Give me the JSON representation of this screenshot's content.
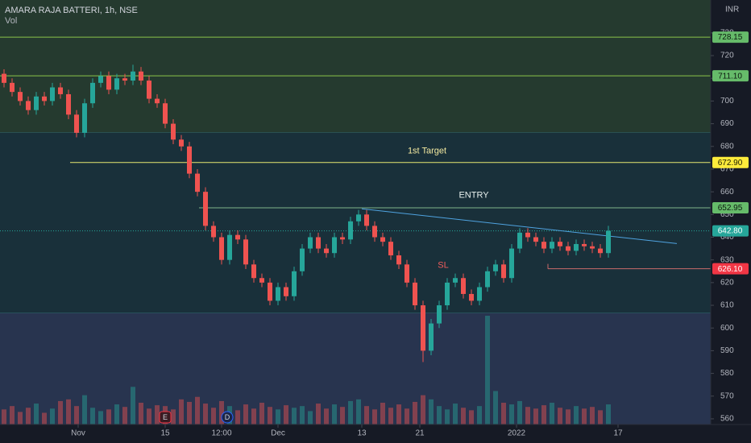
{
  "chart_data": {
    "type": "candlestick",
    "title": "AMARA RAJA BATTERI, 1h, NSE",
    "volume_label": "Vol",
    "currency": "INR",
    "up_color": "#26a69a",
    "down_color": "#ef5350",
    "x": [
      0,
      1,
      2,
      3,
      4,
      5,
      6,
      7,
      8,
      9,
      10,
      11,
      12,
      13,
      14,
      15,
      16,
      17,
      18,
      19,
      20,
      21,
      22,
      23,
      24,
      25,
      26,
      27,
      28,
      29,
      30,
      31,
      32,
      33,
      34,
      35,
      36,
      37,
      38,
      39,
      40,
      41,
      42,
      43,
      44,
      45,
      46,
      47,
      48,
      49,
      50,
      51,
      52,
      53,
      54,
      55,
      56,
      57,
      58,
      59,
      60,
      61,
      62,
      63,
      64,
      65,
      66,
      67,
      68,
      69,
      70,
      71,
      72,
      73,
      74,
      75
    ],
    "open": [
      712,
      708,
      704,
      700,
      696,
      702,
      700,
      706,
      703,
      694,
      686,
      699,
      708,
      711,
      705,
      710,
      709,
      713,
      709,
      701,
      699,
      690,
      683,
      680,
      668,
      660,
      645,
      640,
      630,
      641,
      639,
      628,
      622,
      620,
      612,
      618,
      614,
      625,
      635,
      640,
      635,
      633,
      640,
      639,
      647,
      650,
      645,
      640,
      638,
      632,
      628,
      620,
      610,
      590,
      602,
      610,
      620,
      622,
      615,
      612,
      618,
      625,
      628,
      622,
      635,
      642,
      640,
      638,
      635,
      638,
      636,
      634,
      637,
      636,
      635,
      633
    ],
    "high": [
      714,
      710,
      706,
      702,
      704,
      704,
      708,
      708,
      705,
      696,
      701,
      710,
      713,
      713,
      712,
      712,
      716,
      715,
      711,
      703,
      701,
      692,
      685,
      682,
      670,
      662,
      647,
      642,
      643,
      643,
      641,
      630,
      624,
      622,
      620,
      620,
      627,
      637,
      642,
      642,
      637,
      642,
      642,
      649,
      652,
      652,
      647,
      642,
      640,
      634,
      630,
      622,
      612,
      604,
      612,
      622,
      624,
      624,
      617,
      620,
      627,
      630,
      630,
      637,
      644,
      644,
      642,
      640,
      640,
      640,
      638,
      639,
      639,
      638,
      637,
      645
    ],
    "low": [
      706,
      702,
      698,
      694,
      694,
      698,
      698,
      701,
      692,
      684,
      684,
      697,
      706,
      703,
      703,
      707,
      707,
      707,
      699,
      697,
      688,
      681,
      678,
      666,
      658,
      643,
      638,
      628,
      628,
      637,
      626,
      620,
      618,
      610,
      610,
      612,
      612,
      623,
      633,
      633,
      631,
      631,
      637,
      637,
      645,
      643,
      638,
      636,
      630,
      626,
      618,
      608,
      585,
      588,
      600,
      608,
      618,
      613,
      610,
      610,
      616,
      623,
      620,
      620,
      633,
      638,
      636,
      633,
      633,
      634,
      632,
      632,
      634,
      633,
      631,
      631
    ],
    "close": [
      708,
      704,
      700,
      696,
      702,
      700,
      706,
      703,
      694,
      686,
      699,
      708,
      711,
      705,
      710,
      709,
      713,
      709,
      701,
      699,
      690,
      683,
      680,
      668,
      660,
      645,
      640,
      630,
      641,
      639,
      628,
      622,
      620,
      612,
      618,
      614,
      625,
      635,
      640,
      635,
      633,
      640,
      639,
      647,
      650,
      645,
      640,
      638,
      632,
      628,
      620,
      610,
      590,
      602,
      610,
      620,
      622,
      615,
      612,
      618,
      625,
      628,
      622,
      635,
      642,
      640,
      638,
      635,
      638,
      636,
      634,
      637,
      636,
      635,
      633,
      642.8
    ],
    "volume": [
      18,
      22,
      15,
      20,
      25,
      14,
      19,
      28,
      30,
      22,
      35,
      20,
      16,
      18,
      24,
      21,
      45,
      26,
      19,
      23,
      22,
      18,
      30,
      27,
      33,
      25,
      20,
      28,
      22,
      17,
      24,
      19,
      26,
      21,
      18,
      23,
      20,
      22,
      16,
      25,
      19,
      24,
      21,
      28,
      30,
      22,
      18,
      26,
      20,
      24,
      19,
      27,
      35,
      30,
      22,
      18,
      25,
      20,
      17,
      22,
      130,
      40,
      26,
      24,
      28,
      21,
      19,
      23,
      26,
      20,
      18,
      22,
      19,
      21,
      17,
      24
    ],
    "xlim": [
      -0.5,
      87.7
    ],
    "ylim": [
      557.5,
      744.5
    ],
    "yticks": [
      560,
      570,
      580,
      590,
      600,
      610,
      620,
      630,
      640,
      650,
      660,
      670,
      680,
      690,
      700,
      710,
      720,
      730
    ],
    "xticks": [
      {
        "value": 9.2,
        "label": "Nov"
      },
      {
        "value": 20,
        "label": "15"
      },
      {
        "value": 27,
        "label": "12:00"
      },
      {
        "value": 34,
        "label": "Dec"
      },
      {
        "value": 44.4,
        "label": "13"
      },
      {
        "value": 51.6,
        "label": "21"
      },
      {
        "value": 63.6,
        "label": "2022"
      },
      {
        "value": 76.2,
        "label": "17"
      }
    ],
    "zones": [
      {
        "from": 686,
        "to": 744.5,
        "color": "#253a2f"
      },
      {
        "from": 606.5,
        "to": 686,
        "color": "#19303a"
      },
      {
        "from": 557.5,
        "to": 606.5,
        "color": "#28344f"
      }
    ],
    "levels": [
      {
        "value": 728.15,
        "label": "728.15",
        "from_x": -0.5,
        "color": "#8bc34a",
        "label_bg": "#66bb6a",
        "label_color": "#0c1a10"
      },
      {
        "value": 711.1,
        "label": "711.10",
        "from_x": -0.5,
        "color": "#8bc34a",
        "label_bg": "#66bb6a",
        "label_color": "#0c1a10"
      },
      {
        "value": 672.9,
        "label": "672.90",
        "from_x": 8.2,
        "color": "#e8e870",
        "label_bg": "#ffeb3b",
        "label_color": "#1a1a00"
      },
      {
        "value": 652.95,
        "label": "652.95",
        "from_x": 24.2,
        "color": "#7fb38a",
        "label_bg": "#66bb6a",
        "label_color": "#0c1a10"
      },
      {
        "value": 642.8,
        "label": "642.80",
        "from_x": -0.5,
        "color": "#26a69a",
        "label_bg": "#26a69a",
        "label_color": "#ffffff",
        "dashed": true
      },
      {
        "value": 626.1,
        "label": "626.10",
        "from_x": 67.5,
        "color": "#c96a6a",
        "label_bg": "#f23645",
        "label_color": "#ffffff"
      }
    ],
    "trendline": {
      "x": [
        44.4,
        83.5
      ],
      "y": [
        652.5,
        637.2
      ],
      "color": "#4fa3e0"
    },
    "annotations": [
      {
        "text": "1st Target",
        "x": 52.5,
        "y": 678,
        "color": "#f3e9a0"
      },
      {
        "text": "ENTRY",
        "x": 58.3,
        "y": 658.5,
        "color": "#e8f0ee"
      },
      {
        "text": "SL",
        "x": 54.5,
        "y": 627.5,
        "color": "#f05c5c"
      }
    ],
    "events": [
      {
        "label": "E",
        "x": 20,
        "color": "#f23645"
      },
      {
        "label": "D",
        "x": 27.7,
        "color": "#2962ff"
      }
    ]
  }
}
